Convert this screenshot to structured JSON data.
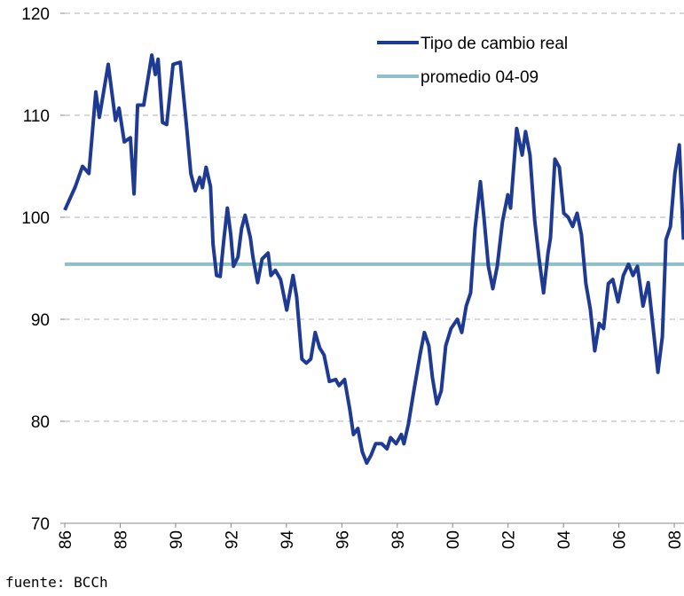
{
  "chart_data": {
    "type": "line",
    "x": [
      1986.0,
      1986.38,
      1986.64,
      1986.87,
      1987.12,
      1987.25,
      1987.57,
      1987.83,
      1987.96,
      1988.15,
      1988.37,
      1988.5,
      1988.63,
      1988.85,
      1989.14,
      1989.27,
      1989.37,
      1989.53,
      1989.68,
      1989.91,
      1990.17,
      1990.39,
      1990.55,
      1990.71,
      1990.87,
      1990.97,
      1991.1,
      1991.26,
      1991.35,
      1991.48,
      1991.61,
      1991.74,
      1991.87,
      1991.99,
      1992.09,
      1992.25,
      1992.38,
      1992.51,
      1992.7,
      1992.79,
      1992.96,
      1993.12,
      1993.34,
      1993.44,
      1993.6,
      1993.79,
      1994.01,
      1994.24,
      1994.37,
      1994.56,
      1994.72,
      1994.88,
      1995.04,
      1995.2,
      1995.36,
      1995.55,
      1995.78,
      1995.9,
      1996.1,
      1996.29,
      1996.42,
      1996.58,
      1996.74,
      1996.9,
      1997.06,
      1997.22,
      1997.44,
      1997.63,
      1997.76,
      1997.96,
      1998.15,
      1998.24,
      1998.4,
      1998.6,
      1998.82,
      1998.98,
      1999.14,
      1999.27,
      1999.43,
      1999.59,
      1999.75,
      1999.94,
      2000.17,
      2000.33,
      2000.49,
      2000.65,
      2000.81,
      2001.0,
      2001.13,
      2001.29,
      2001.45,
      2001.61,
      2001.8,
      2001.99,
      2002.09,
      2002.31,
      2002.51,
      2002.63,
      2002.79,
      2002.96,
      2003.12,
      2003.28,
      2003.44,
      2003.53,
      2003.69,
      2003.85,
      2004.01,
      2004.17,
      2004.33,
      2004.49,
      2004.65,
      2004.81,
      2004.97,
      2005.13,
      2005.29,
      2005.45,
      2005.62,
      2005.78,
      2005.97,
      2006.16,
      2006.35,
      2006.51,
      2006.67,
      2006.87,
      2007.06,
      2007.22,
      2007.41,
      2007.57,
      2007.7,
      2007.86,
      2008.02,
      2008.18,
      2008.33
    ],
    "series": [
      {
        "name": "Tipo de cambio real",
        "color": "#1f3a93",
        "values": [
          100.7,
          103,
          105,
          104.3,
          112.3,
          109.8,
          115,
          109.5,
          110.7,
          107.4,
          107.8,
          102.3,
          111,
          111,
          115.9,
          114,
          115.5,
          109.3,
          109.1,
          115,
          115.2,
          109.1,
          104.3,
          102.6,
          103.9,
          102.9,
          104.9,
          103,
          97.4,
          94.3,
          94.2,
          97.8,
          100.9,
          98.3,
          95.2,
          96.1,
          98.9,
          100.2,
          98,
          96.1,
          93.6,
          95.9,
          96.5,
          94.3,
          94.8,
          93.9,
          90.9,
          94.3,
          92.2,
          86.1,
          85.7,
          86.1,
          88.7,
          87.2,
          86.5,
          83.9,
          84.1,
          83.5,
          84.1,
          81.1,
          78.7,
          79.3,
          77,
          75.9,
          76.7,
          77.8,
          77.8,
          77.3,
          78.4,
          77.8,
          78.7,
          77.8,
          79.7,
          83,
          86.5,
          88.7,
          87.4,
          84.3,
          81.7,
          83,
          87.4,
          89.1,
          90,
          88.7,
          91.3,
          92.6,
          98.9,
          103.5,
          100,
          95.2,
          93,
          95.2,
          99.6,
          102.2,
          100.9,
          108.7,
          106.1,
          108.4,
          106.1,
          99.7,
          95.9,
          92.6,
          96.5,
          98,
          105.7,
          104.9,
          100.4,
          100,
          99.1,
          100.4,
          98.3,
          93.5,
          91,
          86.9,
          89.6,
          89.1,
          93.5,
          93.9,
          91.7,
          94.3,
          95.4,
          94.3,
          95.2,
          91.3,
          93.6,
          89.6,
          84.8,
          88.3,
          97.8,
          99.1,
          104.3,
          107.1,
          97.8
        ]
      }
    ],
    "reference_line": {
      "name": "promedio 04-09",
      "value": 95.4,
      "color": "#8fbfc8"
    },
    "xlim": [
      1986,
      2008.35
    ],
    "xticks": [
      {
        "value": 1986,
        "label": "86"
      },
      {
        "value": 1988,
        "label": "88"
      },
      {
        "value": 1990,
        "label": "90"
      },
      {
        "value": 1992,
        "label": "92"
      },
      {
        "value": 1994,
        "label": "94"
      },
      {
        "value": 1996,
        "label": "96"
      },
      {
        "value": 1998,
        "label": "98"
      },
      {
        "value": 2000,
        "label": "00"
      },
      {
        "value": 2002,
        "label": "02"
      },
      {
        "value": 2004,
        "label": "04"
      },
      {
        "value": 2006,
        "label": "06"
      },
      {
        "value": 2008,
        "label": "08"
      }
    ],
    "ylim": [
      70,
      120
    ],
    "yticks": [
      70,
      80,
      90,
      100,
      110,
      120
    ],
    "grid": true,
    "source": "fuente: BCCh"
  }
}
